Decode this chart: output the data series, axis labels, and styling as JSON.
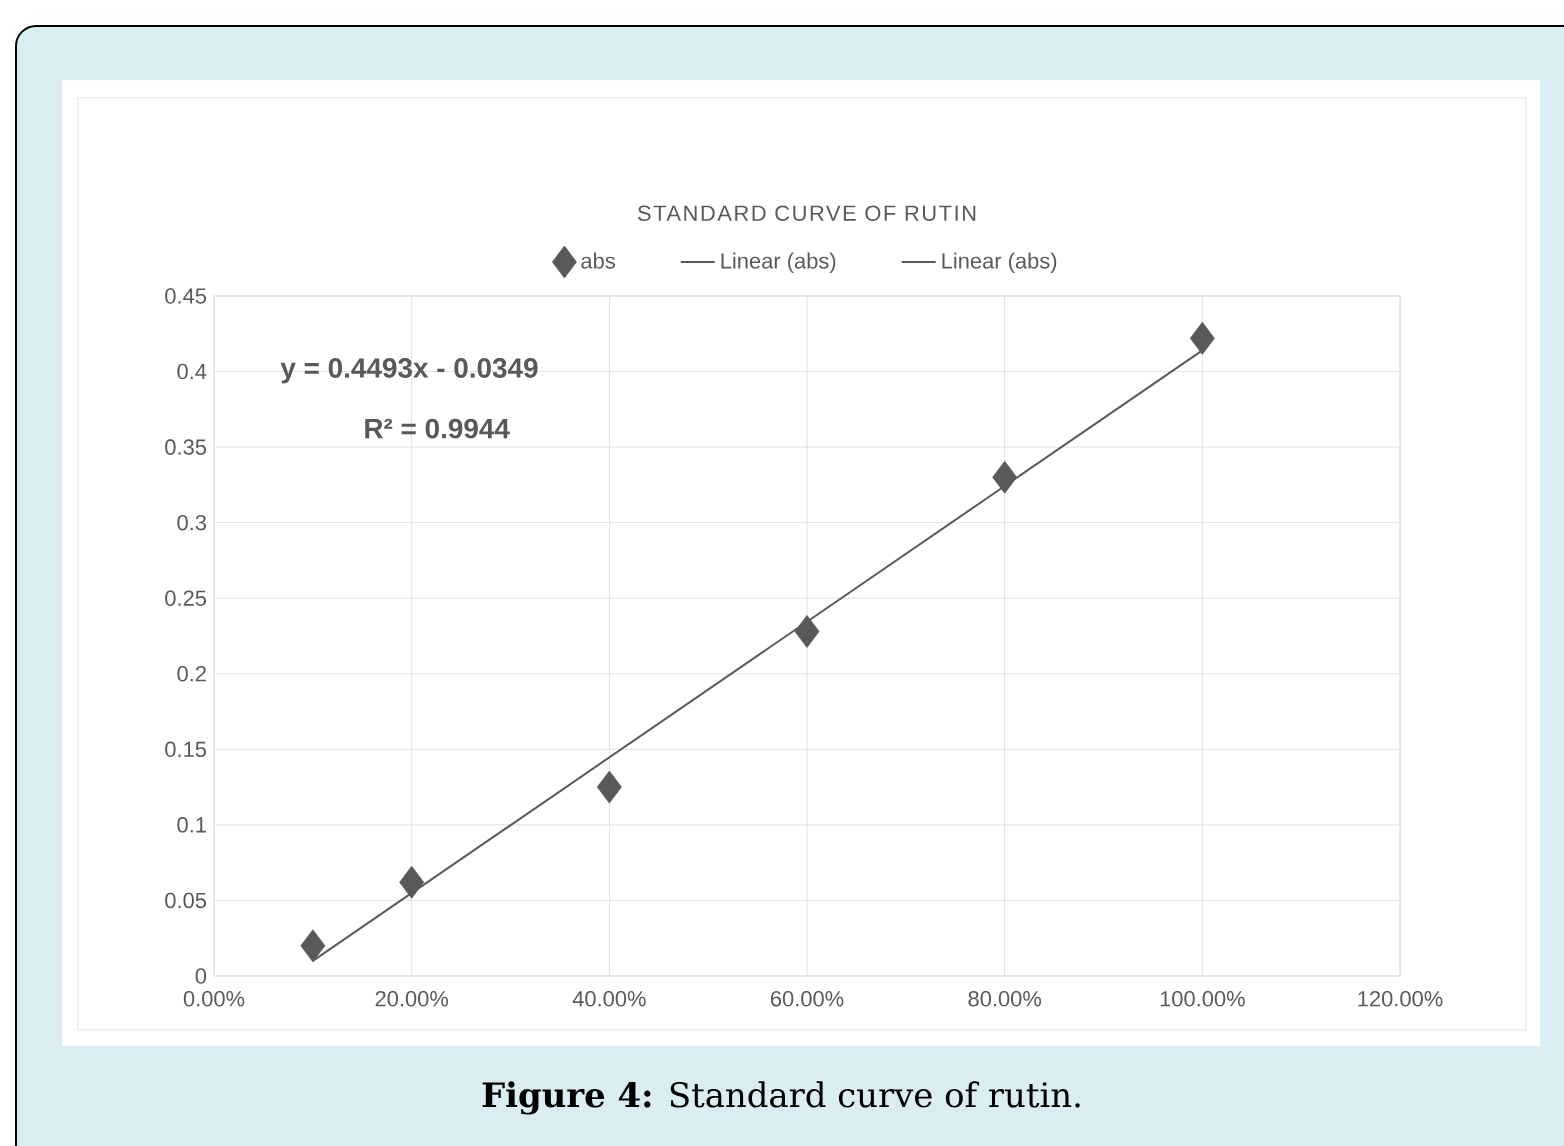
{
  "chart_data": {
    "type": "scatter",
    "title": "STANDARD CURVE OF RUTIN",
    "x": [
      0.1,
      0.2,
      0.4,
      0.6,
      0.8,
      1.0
    ],
    "series": [
      {
        "name": "abs",
        "color": "#595959",
        "marker": "diamond",
        "values": [
          0.02,
          0.062,
          0.125,
          0.228,
          0.33,
          0.422
        ]
      },
      {
        "name": "Linear (abs)",
        "type": "line",
        "color": "#595959",
        "marker": "none",
        "x": [
          0.1,
          1.0
        ],
        "values": [
          0.01,
          0.414
        ]
      },
      {
        "name": "Linear (abs)",
        "type": "line",
        "color": "#595959",
        "marker": "none",
        "values": [
          null,
          null,
          null,
          null,
          null,
          null
        ]
      }
    ],
    "xlim": [
      0,
      1.2
    ],
    "ylim": [
      0,
      0.45
    ],
    "xticks": [
      {
        "value": 0,
        "label": "0.00%"
      },
      {
        "value": 0.2,
        "label": "20.00%"
      },
      {
        "value": 0.4,
        "label": "40.00%"
      },
      {
        "value": 0.6,
        "label": "60.00%"
      },
      {
        "value": 0.8,
        "label": "80.00%"
      },
      {
        "value": 1.0,
        "label": "100.00%"
      },
      {
        "value": 1.2,
        "label": "120.00%"
      }
    ],
    "yticks": [
      0,
      0.05,
      0.1,
      0.15,
      0.2,
      0.25,
      0.3,
      0.35,
      0.4,
      0.45
    ],
    "grid": true,
    "legend": "top",
    "annotations": [
      "y = 0.4493x - 0.0349",
      "R² = 0.9944",
      "**Figure 4:** Standard curve of rutin."
    ]
  }
}
